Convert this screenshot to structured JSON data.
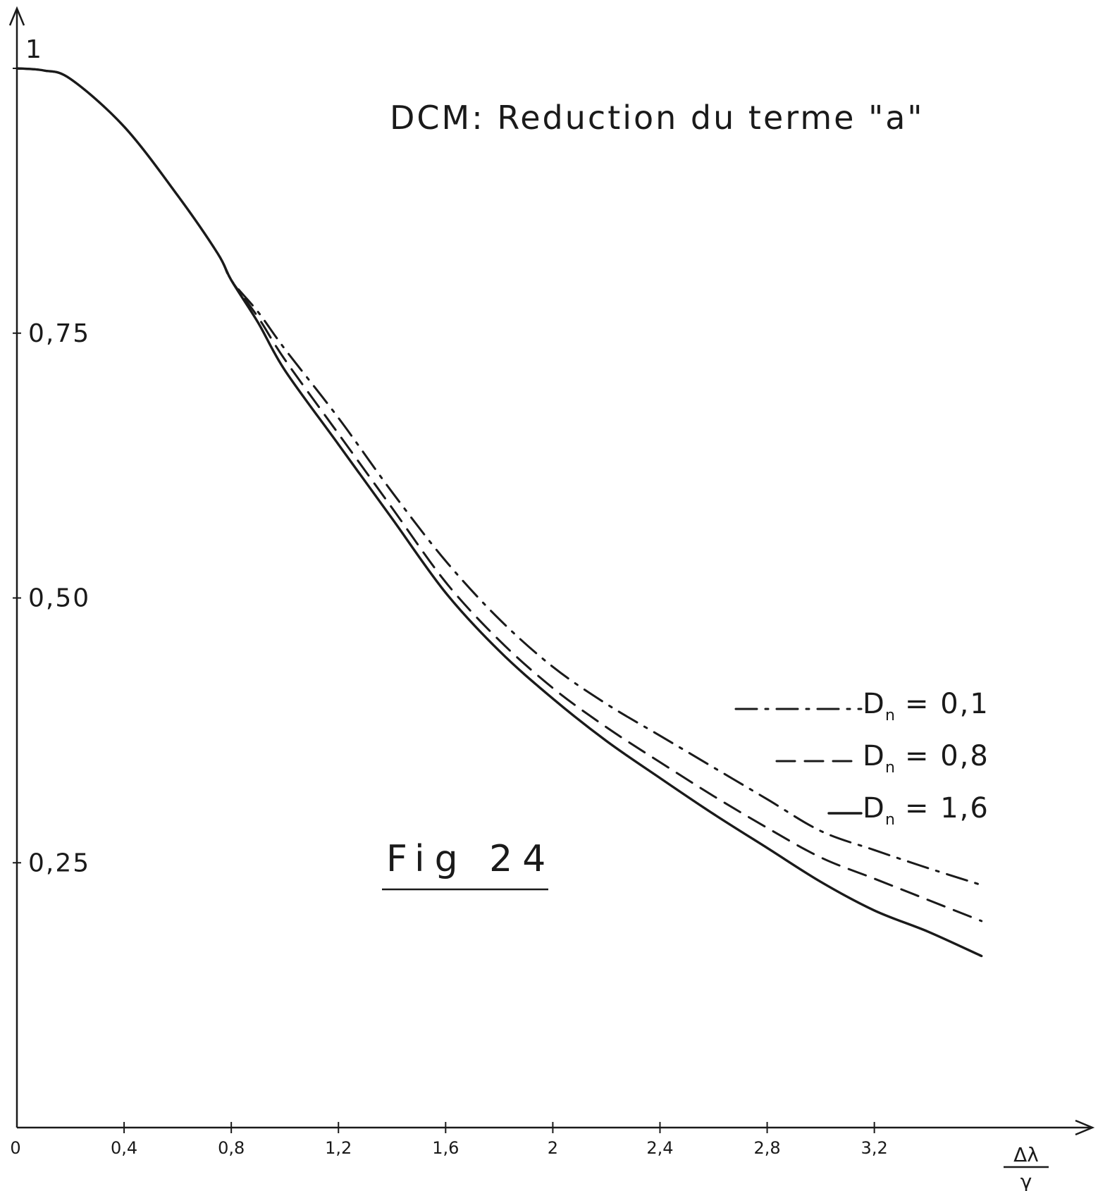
{
  "chart_data": {
    "type": "line",
    "title": "DCM: Reduction du terme \"a\"",
    "figure_label": "Fig 24",
    "xlabel_numerator": "Δλ",
    "xlabel_denominator": "γ",
    "ylabel": "",
    "xlim": [
      0,
      3.8
    ],
    "ylim": [
      0,
      1
    ],
    "x_ticks": [
      {
        "value": 0,
        "label": "0"
      },
      {
        "value": 0.4,
        "label": "0,4"
      },
      {
        "value": 0.8,
        "label": "0,8"
      },
      {
        "value": 1.2,
        "label": "1,2"
      },
      {
        "value": 1.6,
        "label": "1,6"
      },
      {
        "value": 2.0,
        "label": "2"
      },
      {
        "value": 2.4,
        "label": "2,4"
      },
      {
        "value": 2.8,
        "label": "2,8"
      },
      {
        "value": 3.2,
        "label": "3,2"
      }
    ],
    "y_ticks": [
      {
        "value": 1,
        "label": "1"
      },
      {
        "value": 0.75,
        "label": "0,75"
      },
      {
        "value": 0.5,
        "label": "0,50"
      },
      {
        "value": 0.25,
        "label": "0,25"
      }
    ],
    "grid": false,
    "legend_position": "right",
    "series": [
      {
        "name": "D_n = 0,1",
        "legend_label": "D",
        "legend_sub": "n",
        "legend_value": "= 0,1",
        "style": "dashdot",
        "x": [
          0,
          0.1,
          0.2,
          0.4,
          0.6,
          0.75,
          0.8,
          0.9,
          1.0,
          1.2,
          1.4,
          1.6,
          1.8,
          2.0,
          2.2,
          2.4,
          2.6,
          2.8,
          3.0,
          3.2,
          3.4,
          3.6
        ],
        "y": [
          1.0,
          0.998,
          0.99,
          0.945,
          0.88,
          0.825,
          0.8,
          0.77,
          0.735,
          0.67,
          0.6,
          0.535,
          0.48,
          0.435,
          0.4,
          0.37,
          0.34,
          0.31,
          0.28,
          0.262,
          0.245,
          0.229
        ]
      },
      {
        "name": "D_n = 0,8",
        "legend_label": "D",
        "legend_sub": "n",
        "legend_value": "= 0,8",
        "style": "dashed",
        "x": [
          0,
          0.1,
          0.2,
          0.4,
          0.6,
          0.75,
          0.8,
          0.9,
          1.0,
          1.2,
          1.4,
          1.6,
          1.8,
          2.0,
          2.2,
          2.4,
          2.6,
          2.8,
          3.0,
          3.2,
          3.4,
          3.6
        ],
        "y": [
          1.0,
          0.998,
          0.99,
          0.945,
          0.88,
          0.825,
          0.8,
          0.765,
          0.725,
          0.655,
          0.585,
          0.515,
          0.46,
          0.415,
          0.378,
          0.345,
          0.313,
          0.283,
          0.255,
          0.235,
          0.215,
          0.195
        ]
      },
      {
        "name": "D_n = 1,6",
        "legend_label": "D",
        "legend_sub": "n",
        "legend_value": "= 1,6",
        "style": "solid",
        "x": [
          0,
          0.1,
          0.2,
          0.4,
          0.6,
          0.75,
          0.8,
          0.9,
          1.0,
          1.2,
          1.4,
          1.6,
          1.8,
          2.0,
          2.2,
          2.4,
          2.6,
          2.8,
          3.0,
          3.2,
          3.4,
          3.6
        ],
        "y": [
          1.0,
          0.998,
          0.99,
          0.945,
          0.88,
          0.825,
          0.8,
          0.76,
          0.715,
          0.645,
          0.575,
          0.505,
          0.45,
          0.405,
          0.365,
          0.33,
          0.296,
          0.264,
          0.232,
          0.205,
          0.185,
          0.162
        ]
      }
    ]
  }
}
